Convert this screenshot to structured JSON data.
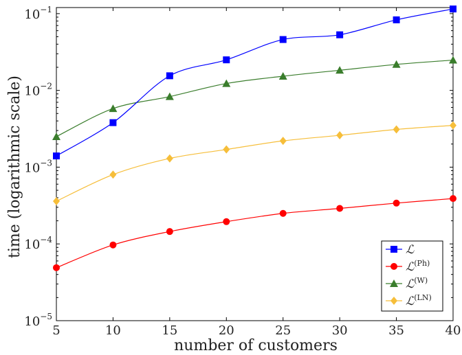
{
  "chart_data": {
    "type": "line",
    "xlabel": "number of customers",
    "ylabel": "time (logarithmic scale)",
    "x": [
      5,
      10,
      15,
      20,
      25,
      30,
      35,
      40
    ],
    "xticks": [
      "5",
      "10",
      "15",
      "20",
      "25",
      "30",
      "35",
      "40"
    ],
    "xlim": [
      5,
      40
    ],
    "ylim": [
      1e-05,
      0.12
    ],
    "y_scale": "log",
    "yticks": [
      {
        "value": 0.1,
        "base": "10",
        "exp": "−1"
      },
      {
        "value": 0.01,
        "base": "10",
        "exp": "−2"
      },
      {
        "value": 0.001,
        "base": "10",
        "exp": "−3"
      },
      {
        "value": 0.0001,
        "base": "10",
        "exp": "−4"
      },
      {
        "value": 1e-05,
        "base": "10",
        "exp": "−5"
      }
    ],
    "grid": false,
    "legend_position": "bottom-right",
    "series": [
      {
        "name": "ℒ",
        "sup": "",
        "color": "#0000ff",
        "marker": "square",
        "values": [
          0.0014,
          0.0038,
          0.0155,
          0.025,
          0.046,
          0.053,
          0.083,
          0.115
        ]
      },
      {
        "name": "ℒ",
        "sup": "(Ph)",
        "color": "#ff0000",
        "marker": "circle",
        "values": [
          4.9e-05,
          9.7e-05,
          0.000145,
          0.000195,
          0.00025,
          0.00029,
          0.00034,
          0.00039
        ]
      },
      {
        "name": "ℒ",
        "sup": "(W)",
        "color": "#3a7d2c",
        "marker": "triangle",
        "values": [
          0.0025,
          0.0058,
          0.0083,
          0.0123,
          0.0153,
          0.0183,
          0.0218,
          0.0248
        ]
      },
      {
        "name": "ℒ",
        "sup": "(LN)",
        "color": "#f6be3a",
        "marker": "diamond",
        "values": [
          0.00036,
          0.0008,
          0.0013,
          0.0017,
          0.0022,
          0.0026,
          0.0031,
          0.0035
        ]
      }
    ]
  }
}
